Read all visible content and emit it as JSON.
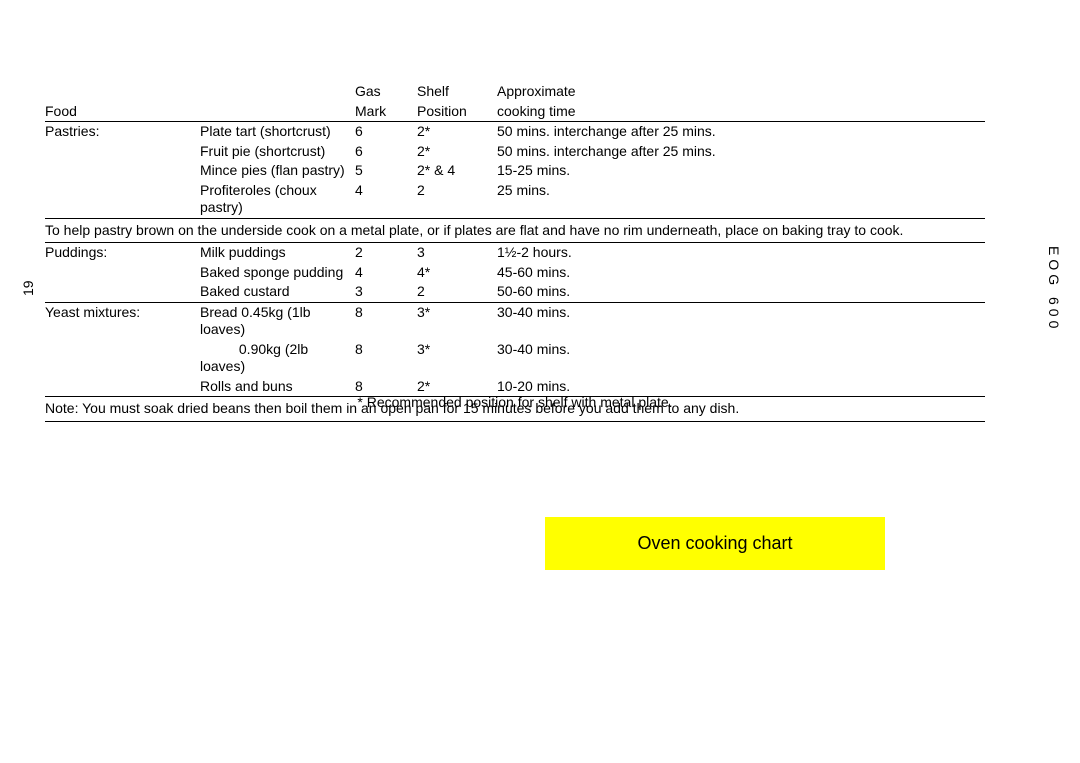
{
  "header": {
    "food": "Food",
    "mark_top": "Gas",
    "mark_bot": "Mark",
    "shelf_top": "Shelf",
    "shelf_bot": "Position",
    "time_top": "Approximate",
    "time_bot": "cooking time"
  },
  "pastries": {
    "label": "Pastries:",
    "rows": [
      {
        "item": "Plate tart (shortcrust)",
        "mark": "6",
        "shelf": "2*",
        "time": "50 mins. interchange after 25 mins."
      },
      {
        "item": "Fruit pie (shortcrust)",
        "mark": "6",
        "shelf": "2*",
        "time": "50 mins. interchange after 25 mins."
      },
      {
        "item": "Mince pies (flan pastry)",
        "mark": "5",
        "shelf": "2* & 4",
        "time": "15-25 mins."
      },
      {
        "item": "Profiteroles (choux pastry)",
        "mark": "4",
        "shelf": "2",
        "time": "25 mins."
      }
    ]
  },
  "note1": "To help pastry brown on the underside cook on a metal plate, or if plates are flat and have no rim underneath, place on baking tray to cook.",
  "puddings": {
    "label": "Puddings:",
    "rows": [
      {
        "item": "Milk puddings",
        "mark": "2",
        "shelf": "3",
        "time": "1½-2 hours."
      },
      {
        "item": "Baked sponge pudding",
        "mark": "4",
        "shelf": "4*",
        "time": "45-60 mins."
      },
      {
        "item": "Baked custard",
        "mark": "3",
        "shelf": "2",
        "time": "50-60 mins."
      }
    ]
  },
  "yeast": {
    "label": "Yeast  mixtures:",
    "rows": [
      {
        "item": "Bread 0.45kg (1lb loaves)",
        "mark": "8",
        "shelf": "3*",
        "time": "30-40 mins."
      },
      {
        "item": "          0.90kg (2lb loaves)",
        "mark": "8",
        "shelf": "3*",
        "time": "30-40 mins."
      },
      {
        "item": "Rolls and buns",
        "mark": "8",
        "shelf": "2*",
        "time": "10-20 mins."
      }
    ]
  },
  "note2": "Note: You must soak dried  beans then boil them in an open pan for 15 minutes before you add them to any dish.",
  "footnote": "* Recommended position for shelf with metal plate.",
  "page_number": "19",
  "side_label": "EOG 600",
  "highlight": "Oven cooking chart",
  "colors": {
    "highlight_bg": "#ffff00",
    "rule": "#000000",
    "bg": "#ffffff",
    "text": "#000000"
  }
}
